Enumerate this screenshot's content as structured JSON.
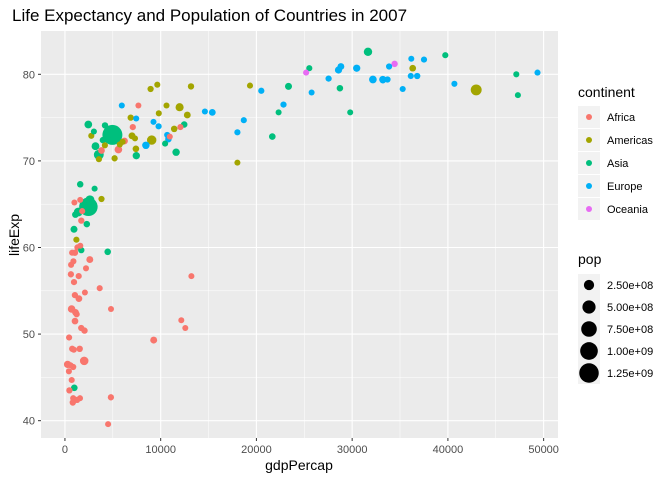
{
  "chart_data": {
    "type": "scatter",
    "title": "Life Expectancy and Population of Countries in 2007",
    "xlabel": "gdpPercap",
    "ylabel": "lifeExp",
    "xlim": [
      -2500,
      51500
    ],
    "ylim": [
      38,
      85
    ],
    "x_ticks": [
      0,
      10000,
      20000,
      30000,
      40000,
      50000
    ],
    "x_tick_labels": [
      "0",
      "10000",
      "20000",
      "30000",
      "40000",
      "50000"
    ],
    "y_ticks": [
      40,
      50,
      60,
      70,
      80
    ],
    "y_tick_labels": [
      "40",
      "50",
      "60",
      "70",
      "80"
    ],
    "grid": true,
    "legend_placement": "right",
    "color_legend": {
      "title": "continent",
      "entries": [
        {
          "label": "Africa",
          "color": "#F8766D"
        },
        {
          "label": "Americas",
          "color": "#A3A500"
        },
        {
          "label": "Asia",
          "color": "#00BF7D"
        },
        {
          "label": "Europe",
          "color": "#00B0F6"
        },
        {
          "label": "Oceania",
          "color": "#E76BF3"
        }
      ]
    },
    "size_legend": {
      "title": "pop",
      "entries": [
        {
          "label": "2.50e+08",
          "value": 250000000
        },
        {
          "label": "5.00e+08",
          "value": 500000000
        },
        {
          "label": "7.50e+08",
          "value": 750000000
        },
        {
          "label": "1.00e+09",
          "value": 1000000000
        },
        {
          "label": "1.25e+09",
          "value": 1250000000
        }
      ]
    },
    "series": [
      {
        "name": "Africa",
        "points": [
          [
            6223,
            72.3,
            33000000
          ],
          [
            4797,
            42.7,
            12400000
          ],
          [
            1441,
            56.7,
            8000000
          ],
          [
            12570,
            50.7,
            1600000
          ],
          [
            1217,
            52.3,
            14300000
          ],
          [
            430,
            49.6,
            8400000
          ],
          [
            2042,
            50.4,
            17700000
          ],
          [
            706,
            44.7,
            4400000
          ],
          [
            1704,
            50.7,
            10200000
          ],
          [
            986,
            65.2,
            700000
          ],
          [
            278,
            46.5,
            64600000
          ],
          [
            3633,
            55.3,
            3800000
          ],
          [
            1545,
            48.3,
            18000000
          ],
          [
            2082,
            54.8,
            500000
          ],
          [
            5581,
            71.3,
            80300000
          ],
          [
            12154,
            51.6,
            600000
          ],
          [
            641,
            58.0,
            4900000
          ],
          [
            691,
            52.9,
            76500000
          ],
          [
            13206,
            56.7,
            1500000
          ],
          [
            753,
            59.4,
            1700000
          ],
          [
            1327,
            60.0,
            22900000
          ],
          [
            943,
            56.0,
            9900000
          ],
          [
            579,
            46.4,
            1500000
          ],
          [
            1463,
            54.1,
            35600000
          ],
          [
            1569,
            42.6,
            2000000
          ],
          [
            415,
            45.7,
            3200000
          ],
          [
            12057,
            73.9,
            6000000
          ],
          [
            1044,
            59.4,
            19200000
          ],
          [
            759,
            48.3,
            13300000
          ],
          [
            1042,
            54.5,
            12000000
          ],
          [
            1803,
            64.2,
            3300000
          ],
          [
            10957,
            72.8,
            1250000
          ],
          [
            3820,
            71.2,
            33800000
          ],
          [
            824,
            42.1,
            19900000
          ],
          [
            4811,
            52.9,
            2100000
          ],
          [
            620,
            56.9,
            12900000
          ],
          [
            2014,
            46.9,
            135000000
          ],
          [
            7670,
            76.4,
            800000
          ],
          [
            863,
            46.2,
            8900000
          ],
          [
            1598,
            65.5,
            200000
          ],
          [
            1712,
            63.1,
            12300000
          ],
          [
            862,
            42.6,
            6100000
          ],
          [
            926,
            48.2,
            9100000
          ],
          [
            9270,
            49.3,
            44000000
          ],
          [
            2602,
            58.6,
            42300000
          ],
          [
            4513,
            39.6,
            1100000
          ],
          [
            1107,
            52.5,
            38100000
          ],
          [
            883,
            58.4,
            5700000
          ],
          [
            7093,
            73.9,
            10300000
          ],
          [
            1056,
            51.5,
            29200000
          ],
          [
            1271,
            42.4,
            11700000
          ],
          [
            470,
            43.5,
            12300000
          ],
          [
            1600,
            60.2,
            1300000
          ],
          [
            2200,
            57.6,
            3100000
          ]
        ]
      },
      {
        "name": "Americas",
        "points": [
          [
            12779,
            75.3,
            40300000
          ],
          [
            3822,
            65.6,
            9100000
          ],
          [
            9066,
            72.4,
            190000000
          ],
          [
            36319,
            80.7,
            33400000
          ],
          [
            13172,
            78.6,
            16300000
          ],
          [
            7007,
            72.9,
            44200000
          ],
          [
            9645,
            78.8,
            4100000
          ],
          [
            8948,
            78.3,
            11400000
          ],
          [
            6025,
            72.2,
            9300000
          ],
          [
            6873,
            75.0,
            13800000
          ],
          [
            5728,
            71.9,
            6900000
          ],
          [
            5186,
            70.3,
            12600000
          ],
          [
            1202,
            60.9,
            8500000
          ],
          [
            3548,
            70.2,
            7500000
          ],
          [
            7321,
            72.6,
            2800000
          ],
          [
            11978,
            76.2,
            108700000
          ],
          [
            2749,
            72.9,
            5700000
          ],
          [
            9809,
            75.5,
            3200000
          ],
          [
            4173,
            71.8,
            6700000
          ],
          [
            7409,
            71.4,
            28700000
          ],
          [
            19329,
            78.7,
            3900000
          ],
          [
            18009,
            69.8,
            1100000
          ],
          [
            42952,
            78.2,
            301100000
          ],
          [
            10611,
            76.4,
            3400000
          ],
          [
            11416,
            73.7,
            26100000
          ]
        ]
      },
      {
        "name": "Asia",
        "points": [
          [
            975,
            43.8,
            31900000
          ],
          [
            29796,
            75.6,
            700000
          ],
          [
            1391,
            64.1,
            150400000
          ],
          [
            1714,
            59.7,
            14100000
          ],
          [
            4959,
            73.0,
            1318700000
          ],
          [
            39725,
            82.2,
            6900000
          ],
          [
            2452,
            64.7,
            1110400000
          ],
          [
            3541,
            70.7,
            223500000
          ],
          [
            11606,
            71.0,
            69500000
          ],
          [
            4471,
            59.5,
            27500000
          ],
          [
            25523,
            80.7,
            6400000
          ],
          [
            31656,
            82.6,
            127500000
          ],
          [
            4519,
            72.5,
            6100000
          ],
          [
            1593,
            67.3,
            23300000
          ],
          [
            23348,
            78.6,
            49000000
          ],
          [
            47307,
            77.6,
            2500000
          ],
          [
            10461,
            72.0,
            3900000
          ],
          [
            12452,
            74.2,
            24800000
          ],
          [
            3096,
            66.8,
            2900000
          ],
          [
            944,
            62.1,
            47800000
          ],
          [
            1091,
            63.8,
            28900000
          ],
          [
            22316,
            75.6,
            3200000
          ],
          [
            2606,
            65.5,
            169300000
          ],
          [
            3190,
            71.7,
            91100000
          ],
          [
            21655,
            72.8,
            27600000
          ],
          [
            47143,
            80.0,
            4600000
          ],
          [
            3970,
            72.4,
            20400000
          ],
          [
            4185,
            74.1,
            19300000
          ],
          [
            28718,
            78.4,
            23200000
          ],
          [
            7458,
            70.6,
            65100000
          ],
          [
            2442,
            74.2,
            85300000
          ],
          [
            3025,
            73.4,
            4000000
          ],
          [
            2281,
            62.7,
            22200000
          ]
        ]
      },
      {
        "name": "Europe",
        "points": [
          [
            5937,
            76.4,
            3600000
          ],
          [
            36126,
            79.8,
            8200000
          ],
          [
            33693,
            79.4,
            10400000
          ],
          [
            7446,
            74.9,
            4600000
          ],
          [
            10681,
            73.0,
            7300000
          ],
          [
            14619,
            75.7,
            4500000
          ],
          [
            22833,
            76.5,
            10200000
          ],
          [
            35278,
            78.3,
            5500000
          ],
          [
            33207,
            79.3,
            5200000
          ],
          [
            30470,
            80.7,
            61100000
          ],
          [
            32170,
            79.4,
            82400000
          ],
          [
            27538,
            79.5,
            10700000
          ],
          [
            18009,
            73.3,
            10000000
          ],
          [
            36181,
            81.8,
            300000
          ],
          [
            40676,
            78.9,
            4100000
          ],
          [
            28570,
            80.5,
            58100000
          ],
          [
            9254,
            74.5,
            700000
          ],
          [
            36798,
            79.8,
            16600000
          ],
          [
            49357,
            80.2,
            4600000
          ],
          [
            15390,
            75.6,
            38500000
          ],
          [
            20510,
            78.1,
            10600000
          ],
          [
            10808,
            72.5,
            22300000
          ],
          [
            9787,
            74.0,
            10200000
          ],
          [
            18678,
            74.7,
            5400000
          ],
          [
            25768,
            77.9,
            2000000
          ],
          [
            28821,
            80.9,
            40400000
          ],
          [
            33860,
            80.9,
            9000000
          ],
          [
            37506,
            81.7,
            7600000
          ],
          [
            8458,
            71.8,
            71200000
          ],
          [
            33203,
            79.4,
            60800000
          ]
        ]
      },
      {
        "name": "Oceania",
        "points": [
          [
            34435,
            81.2,
            20400000
          ],
          [
            25185,
            80.2,
            4100000
          ]
        ]
      }
    ]
  }
}
